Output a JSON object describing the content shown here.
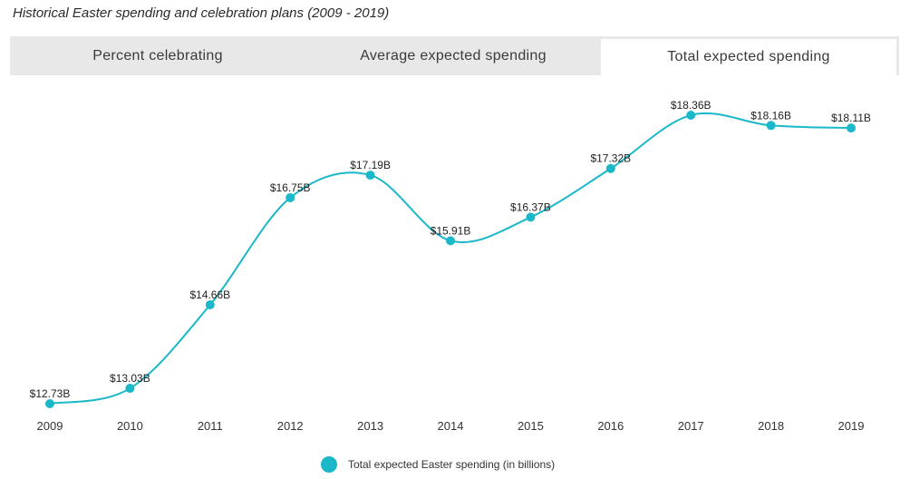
{
  "page": {
    "title": "Historical Easter spending and celebration plans (2009 - 2019)"
  },
  "tabs": [
    {
      "label": "Percent celebrating",
      "active": false
    },
    {
      "label": "Average expected spending",
      "active": false
    },
    {
      "label": "Total expected spending",
      "active": true
    }
  ],
  "colors": {
    "line": "#1bb8c9",
    "tab_bg": "#e8e8e8"
  },
  "chart_data": {
    "type": "line",
    "categories": [
      "2009",
      "2010",
      "2011",
      "2012",
      "2013",
      "2014",
      "2015",
      "2016",
      "2017",
      "2018",
      "2019"
    ],
    "series": [
      {
        "name": "Total expected Easter spending (in billions)",
        "values": [
          12.73,
          13.03,
          14.66,
          16.75,
          17.19,
          15.91,
          16.37,
          17.32,
          18.36,
          18.16,
          18.11
        ],
        "labels": [
          "$12.73B",
          "$13.03B",
          "$14.66B",
          "$16.75B",
          "$17.19B",
          "$15.91B",
          "$16.37B",
          "$17.32B",
          "$18.36B",
          "$18.16B",
          "$18.11B"
        ]
      }
    ],
    "title": "Historical Easter spending and celebration plans (2009 - 2019)",
    "xlabel": "",
    "ylabel": "",
    "ylim": [
      12.73,
      18.36
    ],
    "grid": false,
    "smooth": true,
    "legend_position": "bottom"
  },
  "legend": {
    "label": "Total expected Easter spending (in billions)"
  }
}
